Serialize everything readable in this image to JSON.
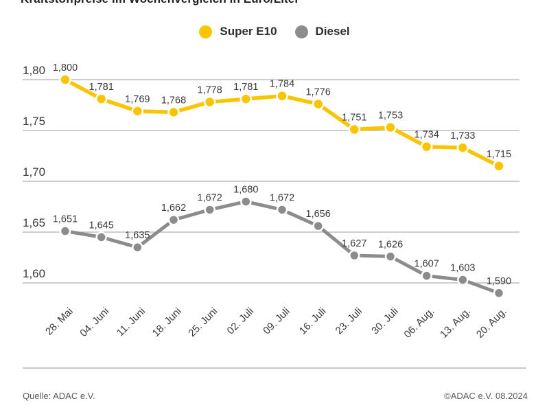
{
  "title": "Kraftstoffpreise im Wochenvergleich in Euro/Liter",
  "legend": [
    {
      "label": "Super E10",
      "color": "#F9C500"
    },
    {
      "label": "Diesel",
      "color": "#8C8C8C"
    }
  ],
  "footer": {
    "source_left": "Quelle: ADAC e.V.",
    "source_right": "©ADAC e.V. 08.2024"
  },
  "chart_data": {
    "type": "line",
    "title": "Kraftstoffpreise im Wochenvergleich in Euro/Liter",
    "unit": "Euro/Liter",
    "categories": [
      "28. Mai",
      "04. Juni",
      "11. Juni",
      "18. Juni",
      "25. Juni",
      "02. Juli",
      "09. Juli",
      "16. Juli",
      "23. Juli",
      "30. Juli",
      "06. Aug.",
      "13. Aug.",
      "20. Aug."
    ],
    "series": [
      {
        "name": "Super E10",
        "color": "#F9C500",
        "values": [
          1.8,
          1.781,
          1.769,
          1.768,
          1.778,
          1.781,
          1.784,
          1.776,
          1.751,
          1.753,
          1.734,
          1.733,
          1.715
        ],
        "labels": [
          "1,800",
          "1,781",
          "1,769",
          "1,768",
          "1,778",
          "1,781",
          "1,784",
          "1,776",
          "1,751",
          "1,753",
          "1,734",
          "1,733",
          "1,715"
        ]
      },
      {
        "name": "Diesel",
        "color": "#8C8C8C",
        "values": [
          1.651,
          1.645,
          1.635,
          1.662,
          1.672,
          1.68,
          1.672,
          1.656,
          1.627,
          1.626,
          1.607,
          1.603,
          1.59
        ],
        "labels": [
          "1,651",
          "1,645",
          "1,635",
          "1,662",
          "1,672",
          "1,680",
          "1,672",
          "1,656",
          "1,627",
          "1,626",
          "1,607",
          "1,603",
          "1,590"
        ]
      }
    ],
    "y_ticks": {
      "values": [
        1.8,
        1.75,
        1.7,
        1.65,
        1.6
      ],
      "labels": [
        "1,80",
        "1,75",
        "1,70",
        "1,65",
        "1,60"
      ]
    },
    "ylim": [
      1.575,
      1.81
    ],
    "grid": true,
    "legend_position": "top",
    "gridline_color": "#b0b0b0",
    "label_color": "#3a3a3a"
  }
}
